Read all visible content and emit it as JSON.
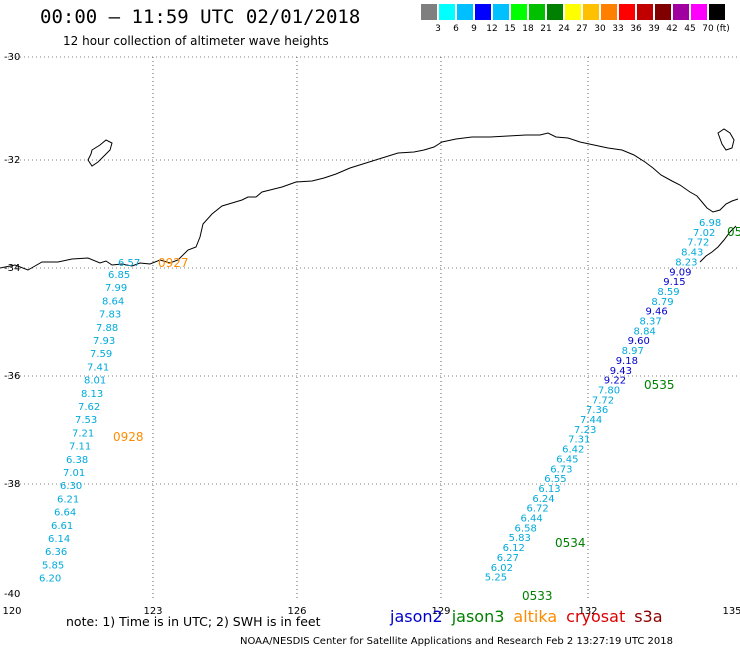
{
  "header": {
    "title": "00:00 – 11:59 UTC 02/01/2018",
    "subtitle": "12 hour collection of altimeter wave heights"
  },
  "scale": {
    "unit": "(ft)",
    "labels": [
      "3",
      "6",
      "9",
      "12",
      "15",
      "18",
      "21",
      "24",
      "27",
      "30",
      "33",
      "36",
      "39",
      "42",
      "45",
      "70"
    ],
    "colors": [
      "#7f7f7f",
      "#00ffff",
      "#00bfff",
      "#0000ff",
      "#00c0ff",
      "#00ff00",
      "#00c000",
      "#008000",
      "#ffff00",
      "#ffc000",
      "#ff8000",
      "#ff0000",
      "#c00000",
      "#800000",
      "#a000a0",
      "#ff00ff",
      "#000000"
    ]
  },
  "axes": {
    "lon_ticks": [
      "120",
      "123",
      "126",
      "129",
      "132",
      "135"
    ],
    "lat_ticks": [
      "-30",
      "-32",
      "-34",
      "-36",
      "-38",
      "-40"
    ]
  },
  "tracks": {
    "west": {
      "color": "#00aadd",
      "heights": [
        "6.85",
        "7.99",
        "8.64",
        "7.83",
        "7.88",
        "7.93",
        "7.59",
        "7.41",
        "8.01",
        "8.13",
        "7.62",
        "7.53",
        "7.21",
        "7.11",
        "6.38",
        "7.01",
        "6.30",
        "6.21",
        "6.64",
        "6.61",
        "6.14",
        "6.36",
        "5.85",
        "6.20"
      ],
      "time_labels": [
        {
          "text": "0927",
          "color": "#ff8c00"
        },
        {
          "text": "0928",
          "color": "#ff8c00"
        }
      ],
      "coast_value": "6.57"
    },
    "east": {
      "heights": [
        {
          "v": "6.98",
          "c": "#00aadd"
        },
        {
          "v": "7.02",
          "c": "#00aadd"
        },
        {
          "v": "7.72",
          "c": "#00aadd"
        },
        {
          "v": "8.43",
          "c": "#00aadd"
        },
        {
          "v": "8.23",
          "c": "#00aadd"
        },
        {
          "v": "9.09",
          "c": "#0000cc"
        },
        {
          "v": "9.15",
          "c": "#0000cc"
        },
        {
          "v": "8.59",
          "c": "#00aadd"
        },
        {
          "v": "8.79",
          "c": "#00aadd"
        },
        {
          "v": "9.46",
          "c": "#0000cc"
        },
        {
          "v": "8.37",
          "c": "#00aadd"
        },
        {
          "v": "8.84",
          "c": "#00aadd"
        },
        {
          "v": "9.60",
          "c": "#0000cc"
        },
        {
          "v": "8.97",
          "c": "#00aadd"
        },
        {
          "v": "9.18",
          "c": "#0000cc"
        },
        {
          "v": "9.43",
          "c": "#0000cc"
        },
        {
          "v": "9.22",
          "c": "#0000cc"
        },
        {
          "v": "7.80",
          "c": "#00aadd"
        },
        {
          "v": "7.72",
          "c": "#00aadd"
        },
        {
          "v": "7.36",
          "c": "#00aadd"
        },
        {
          "v": "7.44",
          "c": "#00aadd"
        },
        {
          "v": "7.23",
          "c": "#00aadd"
        },
        {
          "v": "7.31",
          "c": "#00aadd"
        },
        {
          "v": "6.42",
          "c": "#00aadd"
        },
        {
          "v": "6.45",
          "c": "#00aadd"
        },
        {
          "v": "6.73",
          "c": "#00aadd"
        },
        {
          "v": "6.55",
          "c": "#00aadd"
        },
        {
          "v": "6.13",
          "c": "#00aadd"
        },
        {
          "v": "6.24",
          "c": "#00aadd"
        },
        {
          "v": "6.72",
          "c": "#00aadd"
        },
        {
          "v": "6.44",
          "c": "#00aadd"
        },
        {
          "v": "6.58",
          "c": "#00aadd"
        },
        {
          "v": "5.83",
          "c": "#00aadd"
        },
        {
          "v": "6.12",
          "c": "#00aadd"
        },
        {
          "v": "6.27",
          "c": "#00aadd"
        },
        {
          "v": "6.02",
          "c": "#00aadd"
        },
        {
          "v": "5.25",
          "c": "#00aadd"
        }
      ],
      "time_labels": [
        {
          "text": "05",
          "color": "#008000"
        },
        {
          "text": "0535",
          "color": "#008000"
        },
        {
          "text": "0534",
          "color": "#008000"
        },
        {
          "text": "0533",
          "color": "#008000"
        }
      ]
    }
  },
  "footer": {
    "note": "note:  1) Time is in UTC;  2) SWH is in feet",
    "credit": "NOAA/NESDIS Center for Satellite Applications and Research    Feb  2 13:27:19 UTC 2018",
    "satellites": [
      {
        "name": "jason2",
        "color": "#0000cc"
      },
      {
        "name": "jason3",
        "color": "#008000"
      },
      {
        "name": "altika",
        "color": "#ff8c00"
      },
      {
        "name": "cryosat",
        "color": "#dd0000"
      },
      {
        "name": "s3a",
        "color": "#880000"
      }
    ]
  }
}
